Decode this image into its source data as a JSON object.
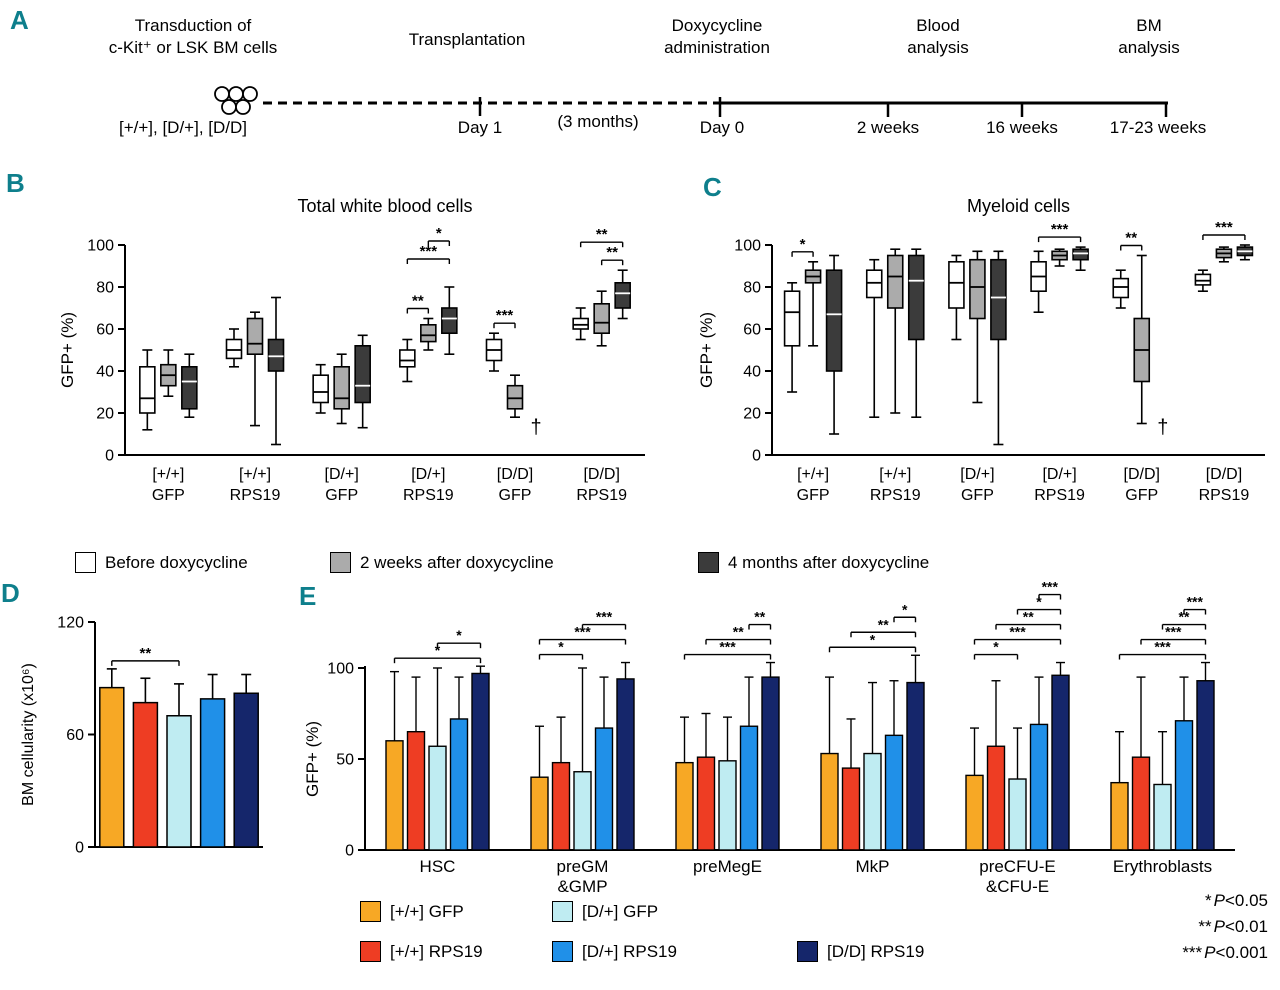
{
  "panels": {
    "a": "A",
    "b": "B",
    "c": "C",
    "d": "D",
    "e": "E"
  },
  "colors": {
    "panel_letter": "#0E7F8C",
    "series_box": [
      "#FFFFFF",
      "#ABABAB",
      "#3B3B3B"
    ],
    "orange": "#F7A825",
    "red": "#EE3D23",
    "light_blue": "#BFECF2",
    "blue": "#2090E8",
    "navy": "#15266B"
  },
  "timeline": {
    "stage_titles": [
      [
        "Transduction of",
        "c-Kit⁺ or LSK BM cells"
      ],
      [
        "Transplantation"
      ],
      [
        "Doxycycline",
        "administration"
      ],
      [
        "Blood",
        "analysis"
      ],
      [
        "BM",
        "analysis"
      ]
    ],
    "below_labels": [
      "[+/+], [D/+], [D/D]",
      "Day 1",
      "(3 months)",
      "Day 0",
      "2 weeks",
      "16 weeks",
      "17-23 weeks"
    ]
  },
  "box_legend": [
    {
      "label": "Before doxycycline",
      "color": "#FFFFFF"
    },
    {
      "label": "2 weeks after doxycycline",
      "color": "#ABABAB"
    },
    {
      "label": "4 months after doxycycline",
      "color": "#3B3B3B"
    }
  ],
  "bar_legend": [
    {
      "label": "[+/+] GFP",
      "color": "#F7A825"
    },
    {
      "label": "[+/+] RPS19",
      "color": "#EE3D23"
    },
    {
      "label": "[D/+] GFP",
      "color": "#BFECF2"
    },
    {
      "label": "[D/+] RPS19",
      "color": "#2090E8"
    },
    {
      "label": "[D/D] RPS19",
      "color": "#15266B"
    }
  ],
  "pvalue_note": [
    {
      "stars": "*",
      "sym": "P",
      "val": "<0.05"
    },
    {
      "stars": "**",
      "sym": "P",
      "val": "<0.01"
    },
    {
      "stars": "***",
      "sym": "P",
      "val": "<0.001"
    }
  ],
  "chart_data": [
    {
      "type": "boxplot",
      "panel": "B",
      "title": "Total white blood cells",
      "ylabel": "GFP+ (%)",
      "ylim": [
        0,
        100
      ],
      "yticks": [
        0,
        20,
        40,
        60,
        80,
        100
      ],
      "series": [
        "Before doxycycline",
        "2 weeks after doxycycline",
        "4 months after doxycycline"
      ],
      "groups": [
        {
          "label": [
            "[+/+]",
            "GFP"
          ],
          "boxes": [
            {
              "lo": 12,
              "q1": 20,
              "med": 27,
              "q3": 42,
              "hi": 50
            },
            {
              "lo": 28,
              "q1": 33,
              "med": 38,
              "q3": 43,
              "hi": 50
            },
            {
              "lo": 18,
              "q1": 22,
              "med": 35,
              "q3": 42,
              "hi": 48
            }
          ]
        },
        {
          "label": [
            "[+/+]",
            "RPS19"
          ],
          "boxes": [
            {
              "lo": 42,
              "q1": 46,
              "med": 50,
              "q3": 55,
              "hi": 60
            },
            {
              "lo": 14,
              "q1": 48,
              "med": 53,
              "q3": 65,
              "hi": 68
            },
            {
              "lo": 5,
              "q1": 40,
              "med": 47,
              "q3": 55,
              "hi": 75
            }
          ]
        },
        {
          "label": [
            "[D/+]",
            "GFP"
          ],
          "boxes": [
            {
              "lo": 20,
              "q1": 25,
              "med": 30,
              "q3": 38,
              "hi": 43
            },
            {
              "lo": 15,
              "q1": 22,
              "med": 27,
              "q3": 42,
              "hi": 48
            },
            {
              "lo": 13,
              "q1": 25,
              "med": 33,
              "q3": 52,
              "hi": 57
            }
          ]
        },
        {
          "label": [
            "[D/+]",
            "RPS19"
          ],
          "boxes": [
            {
              "lo": 35,
              "q1": 42,
              "med": 45,
              "q3": 50,
              "hi": 55
            },
            {
              "lo": 50,
              "q1": 54,
              "med": 57,
              "q3": 62,
              "hi": 65
            },
            {
              "lo": 48,
              "q1": 58,
              "med": 65,
              "q3": 70,
              "hi": 80
            }
          ],
          "sig": [
            {
              "a": 0,
              "b": 1,
              "label": "**",
              "level": 1
            },
            {
              "a": 0,
              "b": 2,
              "label": "***",
              "level": 2
            },
            {
              "a": 1,
              "b": 2,
              "label": "*",
              "level": 3
            }
          ]
        },
        {
          "label": [
            "[D/D]",
            "GFP"
          ],
          "boxes": [
            {
              "lo": 40,
              "q1": 45,
              "med": 50,
              "q3": 55,
              "hi": 58
            },
            {
              "lo": 18,
              "q1": 22,
              "med": 27,
              "q3": 33,
              "hi": 38
            },
            null
          ],
          "sig": [
            {
              "a": 0,
              "b": 1,
              "label": "***",
              "level": 1
            }
          ],
          "dagger": {
            "box": 2,
            "y": 13
          }
        },
        {
          "label": [
            "[D/D]",
            "RPS19"
          ],
          "boxes": [
            {
              "lo": 55,
              "q1": 60,
              "med": 62,
              "q3": 65,
              "hi": 70
            },
            {
              "lo": 52,
              "q1": 58,
              "med": 63,
              "q3": 72,
              "hi": 78
            },
            {
              "lo": 65,
              "q1": 70,
              "med": 77,
              "q3": 82,
              "hi": 88
            }
          ],
          "sig": [
            {
              "a": 1,
              "b": 2,
              "label": "**",
              "level": 1
            },
            {
              "a": 0,
              "b": 2,
              "label": "**",
              "level": 2
            }
          ]
        }
      ]
    },
    {
      "type": "boxplot",
      "panel": "C",
      "title": "Myeloid cells",
      "ylabel": "GFP+ (%)",
      "ylim": [
        0,
        100
      ],
      "yticks": [
        0,
        20,
        40,
        60,
        80,
        100
      ],
      "series": [
        "Before doxycycline",
        "2 weeks after doxycycline",
        "4 months after doxycycline"
      ],
      "groups": [
        {
          "label": [
            "[+/+]",
            "GFP"
          ],
          "boxes": [
            {
              "lo": 30,
              "q1": 52,
              "med": 68,
              "q3": 78,
              "hi": 82
            },
            {
              "lo": 52,
              "q1": 82,
              "med": 85,
              "q3": 88,
              "hi": 92
            },
            {
              "lo": 10,
              "q1": 40,
              "med": 67,
              "q3": 88,
              "hi": 95
            }
          ],
          "sig": [
            {
              "a": 0,
              "b": 1,
              "label": "*",
              "level": 1
            }
          ]
        },
        {
          "label": [
            "[+/+]",
            "RPS19"
          ],
          "boxes": [
            {
              "lo": 18,
              "q1": 75,
              "med": 82,
              "q3": 88,
              "hi": 93
            },
            {
              "lo": 20,
              "q1": 70,
              "med": 85,
              "q3": 95,
              "hi": 98
            },
            {
              "lo": 18,
              "q1": 55,
              "med": 83,
              "q3": 95,
              "hi": 98
            }
          ]
        },
        {
          "label": [
            "[D/+]",
            "GFP"
          ],
          "boxes": [
            {
              "lo": 55,
              "q1": 70,
              "med": 82,
              "q3": 92,
              "hi": 95
            },
            {
              "lo": 25,
              "q1": 65,
              "med": 80,
              "q3": 93,
              "hi": 97
            },
            {
              "lo": 5,
              "q1": 55,
              "med": 75,
              "q3": 93,
              "hi": 97
            }
          ]
        },
        {
          "label": [
            "[D/+]",
            "RPS19"
          ],
          "boxes": [
            {
              "lo": 68,
              "q1": 78,
              "med": 85,
              "q3": 92,
              "hi": 97
            },
            {
              "lo": 90,
              "q1": 93,
              "med": 95,
              "q3": 97,
              "hi": 98
            },
            {
              "lo": 88,
              "q1": 93,
              "med": 96,
              "q3": 98,
              "hi": 99
            }
          ],
          "sig": [
            {
              "a": 0,
              "b": 2,
              "label": "***",
              "level": 1
            }
          ]
        },
        {
          "label": [
            "[D/D]",
            "GFP"
          ],
          "boxes": [
            {
              "lo": 70,
              "q1": 75,
              "med": 80,
              "q3": 84,
              "hi": 88
            },
            {
              "lo": 15,
              "q1": 35,
              "med": 50,
              "q3": 65,
              "hi": 95
            },
            null
          ],
          "sig": [
            {
              "a": 0,
              "b": 1,
              "label": "**",
              "level": 1
            }
          ],
          "dagger": {
            "box": 2,
            "y": 13
          }
        },
        {
          "label": [
            "[D/D]",
            "RPS19"
          ],
          "boxes": [
            {
              "lo": 78,
              "q1": 81,
              "med": 83,
              "q3": 86,
              "hi": 88
            },
            {
              "lo": 92,
              "q1": 94,
              "med": 96,
              "q3": 98,
              "hi": 99
            },
            {
              "lo": 93,
              "q1": 95,
              "med": 97,
              "q3": 99,
              "hi": 100
            }
          ],
          "sig": [
            {
              "a": 0,
              "b": 2,
              "label": "***",
              "level": 1
            }
          ]
        }
      ]
    },
    {
      "type": "bar",
      "panel": "D",
      "ylabel": "BM cellularity (x10⁶)",
      "ylim": [
        0,
        120
      ],
      "yticks": [
        0,
        60,
        120
      ],
      "bars": [
        {
          "name": "[+/+] GFP",
          "color": "#F7A825",
          "value": 85,
          "err": 10
        },
        {
          "name": "[+/+] RPS19",
          "color": "#EE3D23",
          "value": 77,
          "err": 13
        },
        {
          "name": "[D/+] GFP",
          "color": "#BFECF2",
          "value": 70,
          "err": 17
        },
        {
          "name": "[D/+] RPS19",
          "color": "#2090E8",
          "value": 79,
          "err": 13
        },
        {
          "name": "[D/D] RPS19",
          "color": "#15266B",
          "value": 82,
          "err": 10
        }
      ],
      "sig": [
        {
          "a": 0,
          "b": 2,
          "label": "**",
          "level": 1
        }
      ]
    },
    {
      "type": "grouped_bar",
      "panel": "E",
      "ylabel": "GFP+ (%)",
      "ylim": [
        0,
        100
      ],
      "yticks": [
        0,
        50,
        100
      ],
      "series": [
        {
          "name": "[+/+] GFP",
          "color": "#F7A825"
        },
        {
          "name": "[+/+] RPS19",
          "color": "#EE3D23"
        },
        {
          "name": "[D/+] GFP",
          "color": "#BFECF2"
        },
        {
          "name": "[D/+] RPS19",
          "color": "#2090E8"
        },
        {
          "name": "[D/D] RPS19",
          "color": "#15266B"
        }
      ],
      "categories": [
        {
          "label": [
            "HSC"
          ],
          "values": [
            60,
            65,
            57,
            72,
            97
          ],
          "errors": [
            38,
            30,
            43,
            23,
            4
          ],
          "sig": [
            {
              "a": 0,
              "b": 4,
              "label": "*",
              "level": 1
            },
            {
              "a": 2,
              "b": 4,
              "label": "*",
              "level": 2
            }
          ]
        },
        {
          "label": [
            "preGM",
            "&GMP"
          ],
          "values": [
            40,
            48,
            43,
            67,
            94
          ],
          "errors": [
            28,
            25,
            57,
            28,
            9
          ],
          "sig": [
            {
              "a": 0,
              "b": 2,
              "label": "*",
              "level": 1
            },
            {
              "a": 0,
              "b": 4,
              "label": "***",
              "level": 2
            },
            {
              "a": 2,
              "b": 4,
              "label": "***",
              "level": 3
            }
          ]
        },
        {
          "label": [
            "preMegE"
          ],
          "values": [
            48,
            51,
            49,
            68,
            95
          ],
          "errors": [
            25,
            24,
            24,
            27,
            8
          ],
          "sig": [
            {
              "a": 0,
              "b": 4,
              "label": "***",
              "level": 1
            },
            {
              "a": 1,
              "b": 4,
              "label": "**",
              "level": 2
            },
            {
              "a": 3,
              "b": 4,
              "label": "**",
              "level": 3
            }
          ]
        },
        {
          "label": [
            "MkP"
          ],
          "values": [
            53,
            45,
            53,
            63,
            92
          ],
          "errors": [
            42,
            27,
            39,
            30,
            15
          ],
          "sig": [
            {
              "a": 0,
              "b": 4,
              "label": "*",
              "level": 1
            },
            {
              "a": 1,
              "b": 4,
              "label": "**",
              "level": 2
            },
            {
              "a": 3,
              "b": 4,
              "label": "*",
              "level": 3
            }
          ]
        },
        {
          "label": [
            "preCFU-E",
            "&CFU-E"
          ],
          "values": [
            41,
            57,
            39,
            69,
            96
          ],
          "errors": [
            26,
            36,
            28,
            26,
            7
          ],
          "sig": [
            {
              "a": 0,
              "b": 2,
              "label": "*",
              "level": 1
            },
            {
              "a": 0,
              "b": 4,
              "label": "***",
              "level": 2
            },
            {
              "a": 1,
              "b": 4,
              "label": "**",
              "level": 3
            },
            {
              "a": 2,
              "b": 4,
              "label": "*",
              "level": 4
            },
            {
              "a": 3,
              "b": 4,
              "label": "***",
              "level": 5
            }
          ]
        },
        {
          "label": [
            "Erythroblasts"
          ],
          "values": [
            37,
            51,
            36,
            71,
            93
          ],
          "errors": [
            28,
            44,
            29,
            24,
            10
          ],
          "sig": [
            {
              "a": 0,
              "b": 4,
              "label": "***",
              "level": 1
            },
            {
              "a": 1,
              "b": 4,
              "label": "***",
              "level": 2
            },
            {
              "a": 2,
              "b": 4,
              "label": "**",
              "level": 3
            },
            {
              "a": 3,
              "b": 4,
              "label": "***",
              "level": 4
            }
          ]
        }
      ]
    }
  ]
}
